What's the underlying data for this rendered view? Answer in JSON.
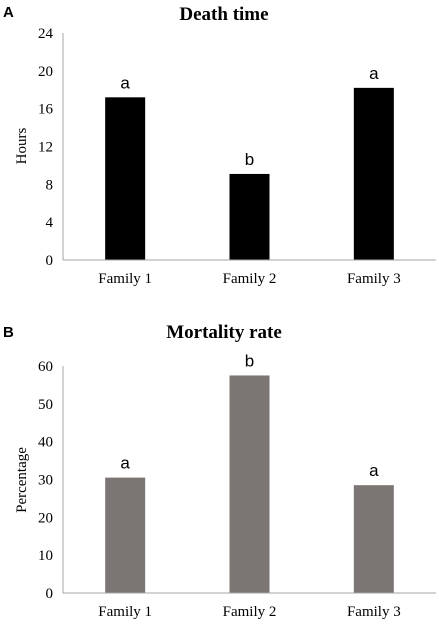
{
  "chart_data": [
    {
      "panel": "A",
      "type": "bar",
      "title": "Death time",
      "ylabel": "Hours",
      "xlabel": "",
      "categories": [
        "Family 1",
        "Family 2",
        "Family 3"
      ],
      "values": [
        17.2,
        9.1,
        18.2
      ],
      "labels": [
        "a",
        "b",
        "a"
      ],
      "yticks": [
        0,
        4,
        8,
        12,
        16,
        20,
        24
      ],
      "ylim": [
        0,
        24
      ],
      "bar_color": "#000000",
      "grid": false
    },
    {
      "panel": "B",
      "type": "bar",
      "title": "Mortality rate",
      "ylabel": "Percentage",
      "xlabel": "",
      "categories": [
        "Family 1",
        "Family 2",
        "Family 3"
      ],
      "values": [
        30.5,
        57.5,
        28.5
      ],
      "labels": [
        "a",
        "b",
        "a"
      ],
      "yticks": [
        0,
        10,
        20,
        30,
        40,
        50,
        60
      ],
      "ylim": [
        0,
        60
      ],
      "bar_color": "#7b7574",
      "grid": false
    }
  ]
}
